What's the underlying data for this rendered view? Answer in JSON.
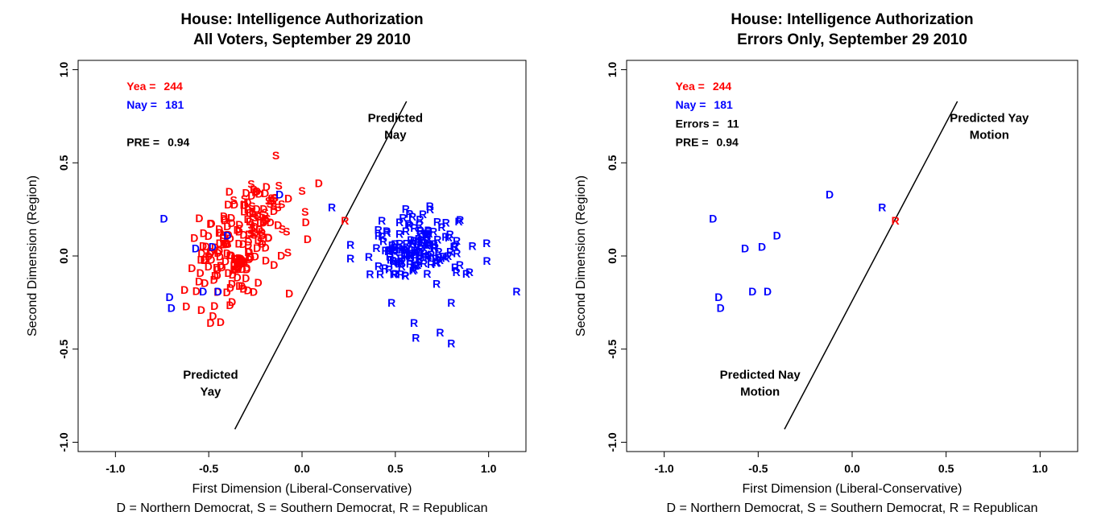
{
  "colors": {
    "yea": "#ff0000",
    "nay": "#0000ff",
    "text": "#000000"
  },
  "chart_data": [
    {
      "type": "scatter",
      "title_line1": "House: Intelligence Authorization",
      "title_line2": "All Voters, September 29 2010",
      "xlabel": "First Dimension (Liberal-Conservative)",
      "ylabel": "Second Dimension (Region)",
      "caption": "D = Northern Democrat, S = Southern Democrat, R = Republican",
      "xlim": [
        -1.2,
        1.2
      ],
      "ylim": [
        -1.05,
        1.05
      ],
      "xticks": [
        -1.0,
        -0.5,
        0.0,
        0.5,
        1.0
      ],
      "xtick_labels": [
        "-1.0",
        "-0.5",
        "0.0",
        "0.5",
        "1.0"
      ],
      "yticks": [
        -1.0,
        -0.5,
        0.0,
        0.5,
        1.0
      ],
      "ytick_labels": [
        "-1.0",
        "-0.5",
        "0.0",
        "0.5",
        "1.0"
      ],
      "stats": [
        {
          "label": "Yea =",
          "value": "244",
          "color": "yea",
          "x": -0.94,
          "y": 0.89
        },
        {
          "label": "Nay =",
          "value": "181",
          "color": "nay",
          "x": -0.94,
          "y": 0.79
        },
        {
          "label": "PRE =",
          "value": "0.94",
          "color": "text",
          "x": -0.94,
          "y": 0.59
        }
      ],
      "cutline": [
        [
          -0.36,
          -0.93
        ],
        [
          0.56,
          0.83
        ]
      ],
      "region_labels": [
        {
          "lines": [
            "Predicted",
            "Nay"
          ],
          "x": 0.5,
          "y": 0.72
        },
        {
          "lines": [
            "Predicted",
            "Yay"
          ],
          "x": -0.49,
          "y": -0.66
        }
      ],
      "points_seed": 7,
      "point_clusters": [
        {
          "party": "D",
          "vote": "yea",
          "n": 120,
          "cx": -0.38,
          "cy": -0.02,
          "sx": 0.1,
          "sy": 0.12
        },
        {
          "party": "D",
          "vote": "yea",
          "n": 40,
          "cx": -0.28,
          "cy": 0.22,
          "sx": 0.08,
          "sy": 0.09
        },
        {
          "party": "S",
          "vote": "yea",
          "n": 35,
          "cx": -0.22,
          "cy": 0.24,
          "sx": 0.1,
          "sy": 0.1
        },
        {
          "party": "R",
          "vote": "nay",
          "n": 150,
          "cx": 0.62,
          "cy": 0.04,
          "sx": 0.12,
          "sy": 0.09
        }
      ],
      "points": [
        {
          "label": "D",
          "x": -0.74,
          "y": 0.2,
          "vote": "nay"
        },
        {
          "label": "D",
          "x": -0.57,
          "y": 0.04,
          "vote": "nay"
        },
        {
          "label": "D",
          "x": -0.48,
          "y": 0.05,
          "vote": "nay"
        },
        {
          "label": "D",
          "x": -0.4,
          "y": 0.11,
          "vote": "nay"
        },
        {
          "label": "D",
          "x": -0.12,
          "y": 0.33,
          "vote": "nay"
        },
        {
          "label": "D",
          "x": -0.71,
          "y": -0.22,
          "vote": "nay"
        },
        {
          "label": "D",
          "x": -0.7,
          "y": -0.28,
          "vote": "nay"
        },
        {
          "label": "D",
          "x": -0.53,
          "y": -0.19,
          "vote": "nay"
        },
        {
          "label": "D",
          "x": -0.45,
          "y": -0.19,
          "vote": "nay"
        },
        {
          "label": "R",
          "x": 0.16,
          "y": 0.26,
          "vote": "nay"
        },
        {
          "label": "R",
          "x": 0.23,
          "y": 0.19,
          "vote": "yea"
        },
        {
          "label": "R",
          "x": 0.26,
          "y": 0.06,
          "vote": "nay"
        },
        {
          "label": "R",
          "x": 1.15,
          "y": -0.19,
          "vote": "nay"
        },
        {
          "label": "R",
          "x": 1.22,
          "y": -0.21,
          "vote": "nay"
        },
        {
          "label": "R",
          "x": 0.6,
          "y": -0.36,
          "vote": "nay"
        },
        {
          "label": "R",
          "x": 0.61,
          "y": -0.44,
          "vote": "nay"
        },
        {
          "label": "R",
          "x": 0.74,
          "y": -0.41,
          "vote": "nay"
        },
        {
          "label": "R",
          "x": 0.8,
          "y": -0.47,
          "vote": "nay"
        },
        {
          "label": "R",
          "x": 0.8,
          "y": -0.25,
          "vote": "nay"
        },
        {
          "label": "R",
          "x": 0.48,
          "y": -0.25,
          "vote": "nay"
        },
        {
          "label": "D",
          "x": -0.49,
          "y": -0.36,
          "vote": "yea"
        },
        {
          "label": "D",
          "x": -0.54,
          "y": -0.29,
          "vote": "yea"
        },
        {
          "label": "D",
          "x": -0.62,
          "y": -0.27,
          "vote": "yea"
        },
        {
          "label": "D",
          "x": 0.03,
          "y": 0.09,
          "vote": "yea"
        },
        {
          "label": "D",
          "x": 0.02,
          "y": 0.18,
          "vote": "yea"
        },
        {
          "label": "D",
          "x": 0.09,
          "y": 0.39,
          "vote": "yea"
        },
        {
          "label": "S",
          "x": -0.14,
          "y": 0.54,
          "vote": "yea"
        },
        {
          "label": "S",
          "x": 0.0,
          "y": 0.35,
          "vote": "yea"
        }
      ]
    },
    {
      "type": "scatter",
      "title_line1": "House: Intelligence Authorization",
      "title_line2": "Errors Only, September 29 2010",
      "xlabel": "First Dimension (Liberal-Conservative)",
      "ylabel": "Second Dimension (Region)",
      "caption": "D = Northern Democrat, S = Southern Democrat, R = Republican",
      "xlim": [
        -1.2,
        1.2
      ],
      "ylim": [
        -1.05,
        1.05
      ],
      "xticks": [
        -1.0,
        -0.5,
        0.0,
        0.5,
        1.0
      ],
      "xtick_labels": [
        "-1.0",
        "-0.5",
        "0.0",
        "0.5",
        "1.0"
      ],
      "yticks": [
        -1.0,
        -0.5,
        0.0,
        0.5,
        1.0
      ],
      "ytick_labels": [
        "-1.0",
        "-0.5",
        "0.0",
        "0.5",
        "1.0"
      ],
      "stats": [
        {
          "label": "Yea =",
          "value": "244",
          "color": "yea",
          "x": -0.94,
          "y": 0.89
        },
        {
          "label": "Nay =",
          "value": "181",
          "color": "nay",
          "x": -0.94,
          "y": 0.79
        },
        {
          "label": "Errors =",
          "value": "11",
          "color": "text",
          "x": -0.94,
          "y": 0.69
        },
        {
          "label": "PRE =",
          "value": "0.94",
          "color": "text",
          "x": -0.94,
          "y": 0.59
        }
      ],
      "cutline": [
        [
          -0.36,
          -0.93
        ],
        [
          0.56,
          0.83
        ]
      ],
      "region_labels": [
        {
          "lines": [
            "Predicted Yay",
            "Motion"
          ],
          "x": 0.73,
          "y": 0.72
        },
        {
          "lines": [
            "Predicted Nay",
            "Motion"
          ],
          "x": -0.49,
          "y": -0.66
        }
      ],
      "points_seed": 0,
      "point_clusters": [],
      "points": [
        {
          "label": "D",
          "x": -0.12,
          "y": 0.33,
          "vote": "nay"
        },
        {
          "label": "D",
          "x": -0.74,
          "y": 0.2,
          "vote": "nay"
        },
        {
          "label": "D",
          "x": -0.4,
          "y": 0.11,
          "vote": "nay"
        },
        {
          "label": "D",
          "x": -0.48,
          "y": 0.05,
          "vote": "nay"
        },
        {
          "label": "D",
          "x": -0.57,
          "y": 0.04,
          "vote": "nay"
        },
        {
          "label": "D",
          "x": -0.71,
          "y": -0.22,
          "vote": "nay"
        },
        {
          "label": "D",
          "x": -0.7,
          "y": -0.28,
          "vote": "nay"
        },
        {
          "label": "D",
          "x": -0.53,
          "y": -0.19,
          "vote": "nay"
        },
        {
          "label": "D",
          "x": -0.45,
          "y": -0.19,
          "vote": "nay"
        },
        {
          "label": "R",
          "x": 0.16,
          "y": 0.26,
          "vote": "nay"
        },
        {
          "label": "R",
          "x": 0.23,
          "y": 0.19,
          "vote": "yea"
        }
      ]
    }
  ]
}
